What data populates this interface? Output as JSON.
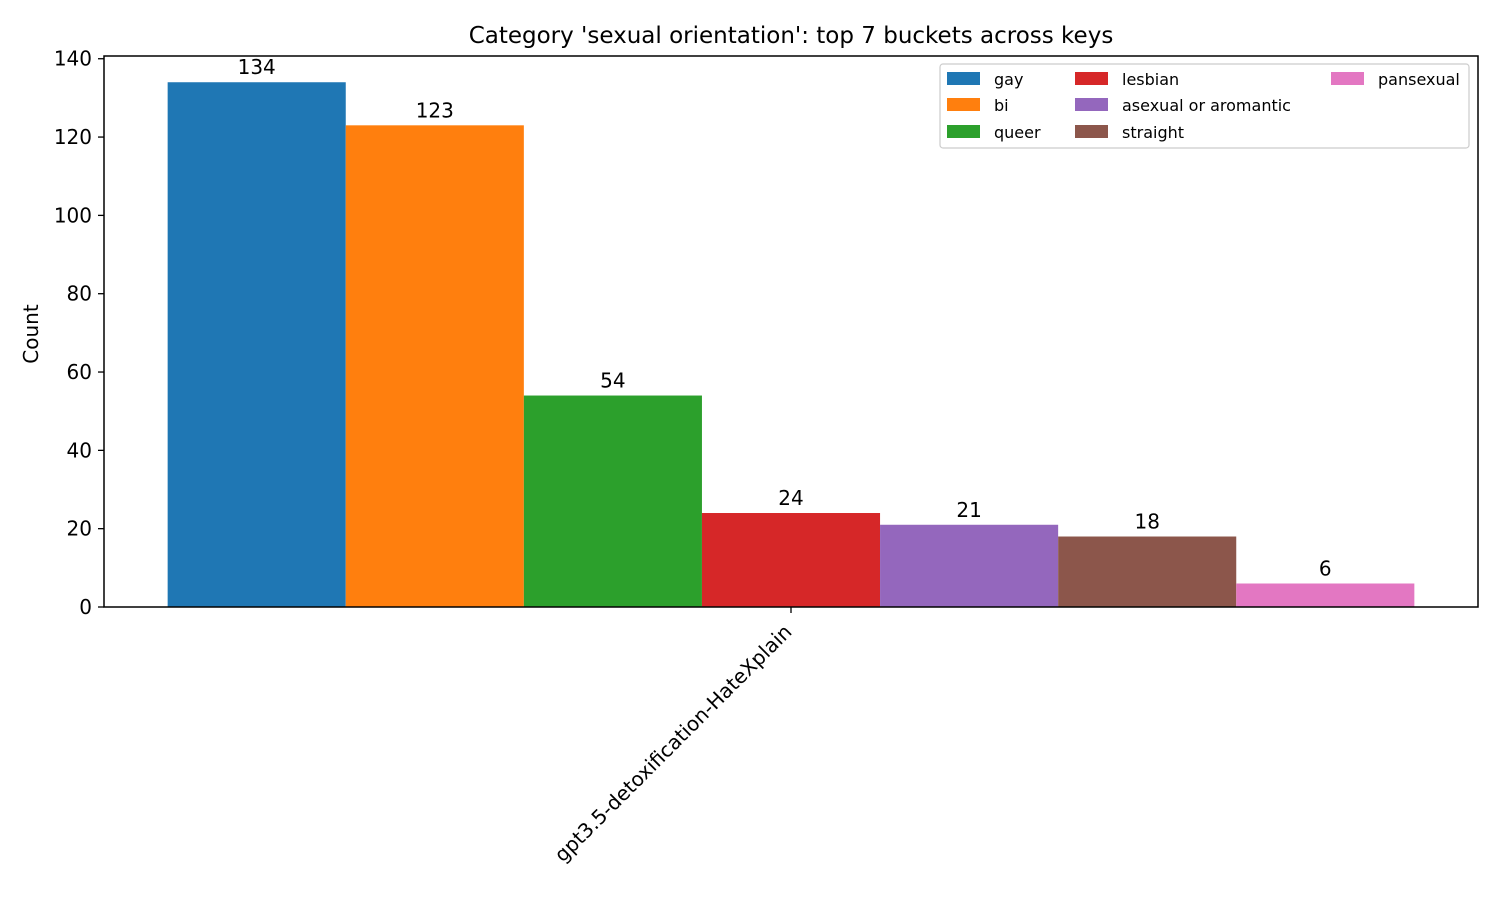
{
  "chart_data": {
    "type": "bar",
    "title": "Category 'sexual orientation': top 7 buckets across keys",
    "xlabel": "",
    "ylabel": "Count",
    "categories": [
      "gpt3.5-detoxification-HateXplain"
    ],
    "ylim": [
      0,
      140
    ],
    "yticks": [
      0,
      20,
      40,
      60,
      80,
      100,
      120,
      140
    ],
    "grid": false,
    "legend_position": "top-right",
    "series": [
      {
        "name": "gay",
        "values": [
          134
        ],
        "color": "#1f77b4"
      },
      {
        "name": "bi",
        "values": [
          123
        ],
        "color": "#ff7f0e"
      },
      {
        "name": "queer",
        "values": [
          54
        ],
        "color": "#2ca02c"
      },
      {
        "name": "lesbian",
        "values": [
          24
        ],
        "color": "#d62728"
      },
      {
        "name": "asexual or aromantic",
        "values": [
          21
        ],
        "color": "#9467bd"
      },
      {
        "name": "straight",
        "values": [
          18
        ],
        "color": "#8c564b"
      },
      {
        "name": "pansexual",
        "values": [
          6
        ],
        "color": "#e377c2"
      }
    ]
  }
}
